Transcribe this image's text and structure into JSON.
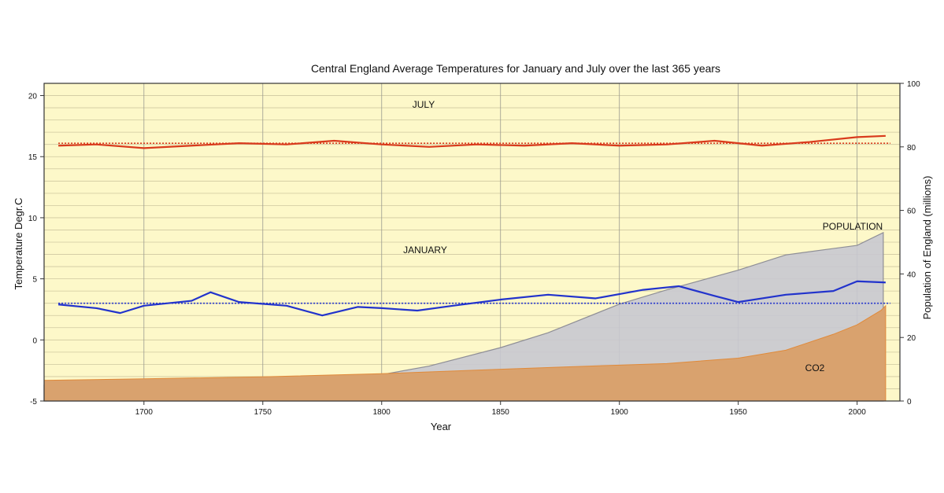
{
  "chart_data": {
    "type": "line",
    "title": "Central England Average Temperatures for January and July over the last 365 years",
    "xlabel": "Year",
    "ylabel_left": "Temperature Degr.C",
    "ylabel_right": "Population of England (millions)",
    "xlim": [
      1658,
      2018
    ],
    "ylim_left": [
      -5,
      21
    ],
    "ylim_right": [
      0,
      100
    ],
    "x_ticks": [
      1700,
      1750,
      1800,
      1850,
      1900,
      1950,
      2000
    ],
    "y_ticks_left": [
      -5,
      0,
      5,
      10,
      15,
      20
    ],
    "y_ticks_right": [
      0,
      20,
      40,
      60,
      80,
      100
    ],
    "grid": true,
    "annotations": {
      "july": "JULY",
      "january": "JANUARY",
      "population": "POPULATION",
      "co2": "CO2"
    },
    "series": [
      {
        "name": "JULY",
        "color": "#d93a1c",
        "mean": 16.1,
        "smoothed": {
          "x": [
            1664,
            1680,
            1700,
            1720,
            1740,
            1760,
            1780,
            1800,
            1820,
            1840,
            1860,
            1880,
            1900,
            1920,
            1940,
            1960,
            1980,
            2000,
            2012
          ],
          "y": [
            15.9,
            16.0,
            15.7,
            15.9,
            16.1,
            16.0,
            16.3,
            16.0,
            15.8,
            16.0,
            15.9,
            16.1,
            15.9,
            16.0,
            16.3,
            15.9,
            16.2,
            16.6,
            16.7
          ]
        }
      },
      {
        "name": "JANUARY",
        "color": "#2233cc",
        "mean": 3.0,
        "smoothed": {
          "x": [
            1664,
            1680,
            1690,
            1700,
            1720,
            1728,
            1740,
            1760,
            1775,
            1790,
            1800,
            1815,
            1830,
            1850,
            1870,
            1890,
            1910,
            1925,
            1940,
            1950,
            1970,
            1990,
            2000,
            2012
          ],
          "y": [
            2.9,
            2.6,
            2.2,
            2.8,
            3.2,
            3.9,
            3.1,
            2.8,
            2.0,
            2.7,
            2.6,
            2.4,
            2.8,
            3.3,
            3.7,
            3.4,
            4.1,
            4.4,
            3.6,
            3.1,
            3.7,
            4.0,
            4.8,
            4.7
          ]
        }
      },
      {
        "name": "POPULATION",
        "color": "#c8c8d0",
        "units": "millions",
        "x": [
          1658,
          1700,
          1750,
          1800,
          1820,
          1850,
          1870,
          1900,
          1920,
          1950,
          1970,
          1990,
          2000,
          2011
        ],
        "y": [
          5,
          5.3,
          6,
          8.3,
          11,
          16.8,
          21.5,
          30.5,
          35,
          41.2,
          46,
          48,
          49,
          53
        ]
      },
      {
        "name": "CO2",
        "color": "#d9a26e",
        "units": "relative scale (right axis)",
        "x": [
          1658,
          1700,
          1750,
          1800,
          1850,
          1880,
          1900,
          1920,
          1950,
          1970,
          1990,
          2000,
          2010,
          2012
        ],
        "y": [
          6.5,
          7,
          7.6,
          8.6,
          10,
          10.8,
          11.3,
          11.8,
          13.5,
          16,
          21,
          24,
          28.5,
          30
        ]
      }
    ]
  }
}
